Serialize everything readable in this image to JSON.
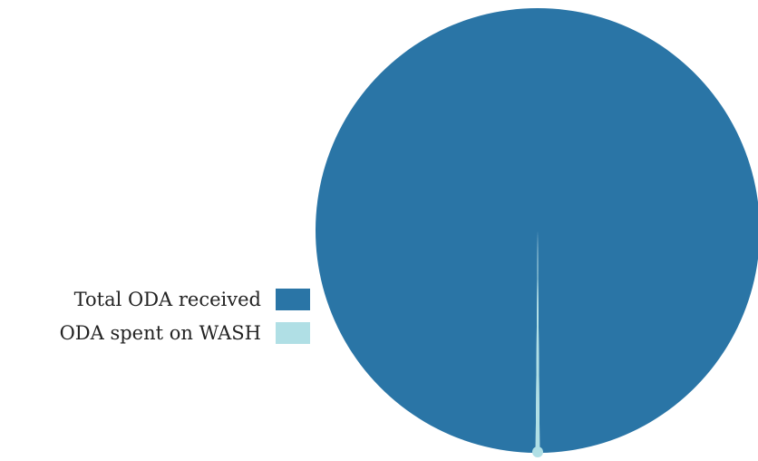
{
  "chart_data": {
    "type": "pie",
    "title": "",
    "slices": [
      {
        "label": "Total ODA received",
        "value": 99.7,
        "color": "#2a75a6"
      },
      {
        "label": "ODA spent on WASH",
        "value": 0.3,
        "color": "#b0dfe5"
      }
    ],
    "legend_placement": "left"
  }
}
